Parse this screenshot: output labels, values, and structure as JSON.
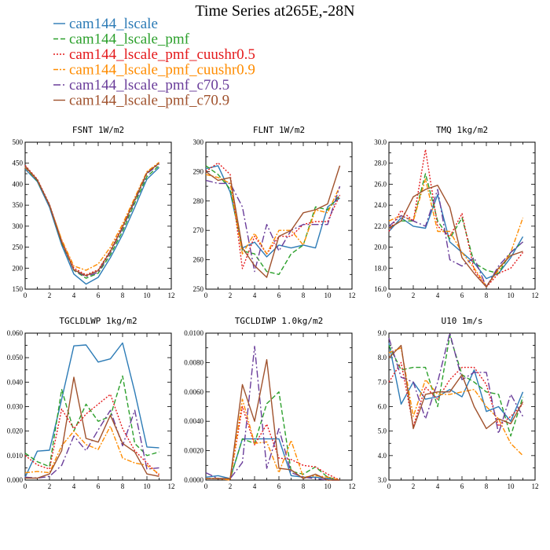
{
  "title": "Time Series at265E,-28N",
  "legend": [
    {
      "name": "cam144_lscale",
      "color": "#2c7bb6",
      "dash": "solid"
    },
    {
      "name": "cam144_lscale_pmf",
      "color": "#2ca02c",
      "dash": "dashed"
    },
    {
      "name": "cam144_lscale_pmf_cuushr0.5",
      "color": "#e41a1c",
      "dash": "dotted"
    },
    {
      "name": "cam144_lscale_pmf_cuushr0.9",
      "color": "#ff8c00",
      "dash": "dashdot"
    },
    {
      "name": "cam144_lscale_pmf_c70.5",
      "color": "#6a3d9a",
      "dash": "longdash"
    },
    {
      "name": "cam144_lscale_pmf_c70.9",
      "color": "#a0522d",
      "dash": "solid"
    }
  ],
  "chart_data": [
    {
      "type": "line",
      "title": "FSNT   1W/m2",
      "x": [
        0,
        1,
        2,
        3,
        4,
        5,
        6,
        7,
        8,
        9,
        10,
        11
      ],
      "xlim": [
        0,
        12
      ],
      "ylim": [
        150,
        500
      ],
      "xticks": [
        "0",
        "2",
        "4",
        "6",
        "8",
        "10",
        "12"
      ],
      "yticks": [
        "150",
        "200",
        "250",
        "300",
        "350",
        "400",
        "450",
        "500"
      ],
      "series": [
        {
          "name": "cam144_lscale",
          "values": [
            436,
            406,
            345,
            255,
            186,
            162,
            178,
            225,
            280,
            345,
            412,
            440
          ]
        },
        {
          "name": "cam144_lscale_pmf",
          "values": [
            440,
            408,
            350,
            260,
            195,
            176,
            188,
            232,
            288,
            355,
            418,
            444
          ]
        },
        {
          "name": "cam144_lscale_pmf_cuushr0.5",
          "values": [
            445,
            412,
            352,
            265,
            200,
            184,
            196,
            242,
            300,
            365,
            428,
            450
          ]
        },
        {
          "name": "cam144_lscale_pmf_cuushr0.9",
          "values": [
            440,
            410,
            350,
            268,
            205,
            195,
            210,
            250,
            305,
            368,
            430,
            452
          ]
        },
        {
          "name": "cam144_lscale_pmf_c70.5",
          "values": [
            442,
            410,
            350,
            262,
            195,
            180,
            190,
            238,
            295,
            360,
            425,
            448
          ]
        },
        {
          "name": "cam144_lscale_pmf_c70.9",
          "values": [
            443,
            410,
            350,
            262,
            196,
            182,
            194,
            240,
            298,
            363,
            427,
            450
          ]
        }
      ]
    },
    {
      "type": "line",
      "title": "FLNT   1W/m2",
      "x": [
        0,
        1,
        2,
        3,
        4,
        5,
        6,
        7,
        8,
        9,
        10,
        11
      ],
      "xlim": [
        0,
        12
      ],
      "ylim": [
        250,
        300
      ],
      "xticks": [
        "0",
        "2",
        "4",
        "6",
        "8",
        "10",
        "12"
      ],
      "yticks": [
        "250",
        "260",
        "270",
        "280",
        "290",
        "300"
      ],
      "series": [
        {
          "name": "cam144_lscale",
          "values": [
            291,
            292,
            283,
            264,
            266,
            261,
            265,
            264,
            265,
            264,
            278,
            281
          ]
        },
        {
          "name": "cam144_lscale_pmf",
          "values": [
            292,
            289,
            284,
            263,
            262,
            256,
            255,
            262,
            265,
            278,
            277,
            282
          ]
        },
        {
          "name": "cam144_lscale_pmf_cuushr0.5",
          "values": [
            290,
            293,
            289,
            257,
            268,
            262,
            268,
            268,
            272,
            273,
            273,
            282
          ]
        },
        {
          "name": "cam144_lscale_pmf_cuushr0.9",
          "values": [
            289,
            288,
            286,
            262,
            269,
            262,
            270,
            270,
            265,
            277,
            276,
            285
          ]
        },
        {
          "name": "cam144_lscale_pmf_c70.5",
          "values": [
            287,
            286,
            286,
            278,
            256,
            272,
            263,
            270,
            272,
            272,
            272,
            285
          ]
        },
        {
          "name": "cam144_lscale_pmf_c70.9",
          "values": [
            290,
            287,
            288,
            264,
            258,
            254,
            268,
            270,
            276,
            277,
            279,
            292
          ]
        }
      ]
    },
    {
      "type": "line",
      "title": "TMQ   1kg/m2",
      "x": [
        0,
        1,
        2,
        3,
        4,
        5,
        6,
        7,
        8,
        9,
        10,
        11
      ],
      "xlim": [
        0,
        12
      ],
      "ylim": [
        16.0,
        30.0
      ],
      "xticks": [
        "0",
        "2",
        "4",
        "6",
        "8",
        "10",
        "12"
      ],
      "yticks": [
        "16.0",
        "18.0",
        "20.0",
        "22.0",
        "24.0",
        "26.0",
        "28.0",
        "30.0"
      ],
      "series": [
        {
          "name": "cam144_lscale",
          "values": [
            21.5,
            22.8,
            22.0,
            21.8,
            25.0,
            20.5,
            19.5,
            18.5,
            17.0,
            17.5,
            19.0,
            21.0
          ]
        },
        {
          "name": "cam144_lscale_pmf",
          "values": [
            21.8,
            22.5,
            22.5,
            27.0,
            22.5,
            20.8,
            22.8,
            18.5,
            17.8,
            17.5,
            19.5,
            20.5
          ]
        },
        {
          "name": "cam144_lscale_pmf_cuushr0.5",
          "values": [
            21.5,
            23.5,
            22.5,
            29.3,
            22.0,
            21.0,
            23.2,
            17.8,
            16.2,
            17.5,
            18.0,
            19.5
          ]
        },
        {
          "name": "cam144_lscale_pmf_cuushr0.9",
          "values": [
            22.5,
            23.0,
            22.5,
            26.5,
            21.5,
            21.5,
            19.5,
            18.0,
            16.3,
            17.8,
            19.5,
            22.8
          ]
        },
        {
          "name": "cam144_lscale_pmf_c70.5",
          "values": [
            22.0,
            23.0,
            22.5,
            22.0,
            25.5,
            18.8,
            18.2,
            19.0,
            16.2,
            18.2,
            19.5,
            20.5
          ]
        },
        {
          "name": "cam144_lscale_pmf_c70.9",
          "values": [
            21.8,
            22.5,
            24.8,
            25.5,
            25.9,
            23.8,
            19.0,
            17.5,
            16.2,
            18.0,
            19.2,
            19.6
          ]
        }
      ]
    },
    {
      "type": "line",
      "title": "TGCLDLWP   1kg/m2",
      "x": [
        0,
        1,
        2,
        3,
        4,
        5,
        6,
        7,
        8,
        9,
        10,
        11
      ],
      "xlim": [
        0,
        12
      ],
      "ylim": [
        0.0,
        0.06
      ],
      "xticks": [
        "0",
        "2",
        "4",
        "6",
        "8",
        "10",
        "12"
      ],
      "yticks": [
        "0.000",
        "0.010",
        "0.020",
        "0.030",
        "0.040",
        "0.050",
        "0.060"
      ],
      "series": [
        {
          "name": "cam144_lscale",
          "values": [
            0.0012,
            0.0118,
            0.0122,
            0.033,
            0.0548,
            0.0552,
            0.0482,
            0.0495,
            0.056,
            0.036,
            0.0135,
            0.0132
          ]
        },
        {
          "name": "cam144_lscale_pmf",
          "values": [
            0.011,
            0.0075,
            0.0055,
            0.037,
            0.02,
            0.031,
            0.024,
            0.026,
            0.0425,
            0.015,
            0.01,
            0.0115
          ]
        },
        {
          "name": "cam144_lscale_pmf_cuushr0.5",
          "values": [
            0.01,
            0.0062,
            0.0045,
            0.029,
            0.021,
            0.027,
            0.031,
            0.035,
            0.021,
            0.012,
            0.007,
            0.002
          ]
        },
        {
          "name": "cam144_lscale_pmf_cuushr0.9",
          "values": [
            0.003,
            0.0035,
            0.003,
            0.014,
            0.02,
            0.0145,
            0.0125,
            0.022,
            0.009,
            0.007,
            0.006,
            0.0025
          ]
        },
        {
          "name": "cam144_lscale_pmf_c70.5",
          "values": [
            0.0012,
            0.0008,
            0.0015,
            0.006,
            0.018,
            0.012,
            0.0205,
            0.0285,
            0.014,
            0.0285,
            0.0045,
            0.005
          ]
        },
        {
          "name": "cam144_lscale_pmf_c70.9",
          "values": [
            0.0008,
            0.0008,
            0.0025,
            0.012,
            0.042,
            0.017,
            0.0155,
            0.0265,
            0.015,
            0.0115,
            0.0025,
            0.0015
          ]
        }
      ]
    },
    {
      "type": "line",
      "title": "TGCLDIWP   1.0kg/m2",
      "x": [
        0,
        1,
        2,
        3,
        4,
        5,
        6,
        7,
        8,
        9,
        10,
        11
      ],
      "xlim": [
        0,
        12
      ],
      "ylim": [
        0.0,
        0.01
      ],
      "xticks": [
        "0",
        "2",
        "4",
        "6",
        "8",
        "10",
        "12"
      ],
      "yticks": [
        "0.0000",
        "0.0020",
        "0.0040",
        "0.0060",
        "0.0080",
        "0.0100"
      ],
      "series": [
        {
          "name": "cam144_lscale",
          "values": [
            0.0002,
            0.0003,
            0.0001,
            0.0028,
            0.0028,
            0.0028,
            0.0028,
            0.0003,
            0.0002,
            0.0002,
            0.0001,
            0.0
          ]
        },
        {
          "name": "cam144_lscale_pmf",
          "values": [
            0.0001,
            0.0001,
            0.0001,
            0.0028,
            0.0025,
            0.0052,
            0.006,
            0.0006,
            0.0004,
            0.0009,
            0.0002,
            0.0
          ]
        },
        {
          "name": "cam144_lscale_pmf_cuushr0.5",
          "values": [
            0.0001,
            0.0001,
            0.0,
            0.005,
            0.0024,
            0.0038,
            0.0015,
            0.0014,
            0.001,
            0.0009,
            0.0004,
            0.0
          ]
        },
        {
          "name": "cam144_lscale_pmf_cuushr0.9",
          "values": [
            0.0001,
            0.0001,
            0.0,
            0.0055,
            0.0025,
            0.0026,
            0.0005,
            0.0027,
            0.0002,
            0.0003,
            0.0002,
            0.0
          ]
        },
        {
          "name": "cam144_lscale_pmf_c70.5",
          "values": [
            0.0005,
            0.0001,
            0.0001,
            0.0012,
            0.0091,
            0.0008,
            0.0035,
            0.0005,
            0.0002,
            0.0001,
            0.0,
            0.0
          ]
        },
        {
          "name": "cam144_lscale_pmf_c70.9",
          "values": [
            0.0001,
            0.0001,
            0.0001,
            0.0065,
            0.004,
            0.0082,
            0.0008,
            0.0007,
            0.0001,
            0.0004,
            0.0,
            0.0
          ]
        }
      ]
    },
    {
      "type": "line",
      "title": "U10   1m/s",
      "x": [
        0,
        1,
        2,
        3,
        4,
        5,
        6,
        7,
        8,
        9,
        10,
        11
      ],
      "xlim": [
        0,
        12
      ],
      "ylim": [
        3.0,
        9.0
      ],
      "xticks": [
        "0",
        "2",
        "4",
        "6",
        "8",
        "10",
        "12"
      ],
      "yticks": [
        "3.0",
        "4.0",
        "5.0",
        "6.0",
        "7.0",
        "8.0",
        "9.0"
      ],
      "series": [
        {
          "name": "cam144_lscale",
          "values": [
            8.6,
            6.1,
            7.0,
            6.3,
            6.4,
            6.7,
            6.4,
            7.5,
            5.8,
            6.0,
            5.4,
            6.6
          ]
        },
        {
          "name": "cam144_lscale_pmf",
          "values": [
            8.5,
            7.5,
            7.6,
            7.6,
            6.0,
            8.9,
            7.3,
            7.0,
            6.6,
            6.5,
            4.8,
            6.4
          ]
        },
        {
          "name": "cam144_lscale_pmf_cuushr0.5",
          "values": [
            7.0,
            7.8,
            5.2,
            6.8,
            6.3,
            7.1,
            7.6,
            7.6,
            6.9,
            5.2,
            5.6,
            6.1
          ]
        },
        {
          "name": "cam144_lscale_pmf_cuushr0.9",
          "values": [
            8.2,
            8.4,
            5.6,
            7.1,
            6.5,
            6.5,
            6.6,
            6.7,
            6.0,
            5.5,
            4.5,
            4.0
          ]
        },
        {
          "name": "cam144_lscale_pmf_c70.5",
          "values": [
            8.8,
            7.2,
            7.0,
            5.5,
            7.0,
            9.0,
            7.1,
            7.4,
            7.4,
            4.9,
            6.5,
            5.6
          ]
        },
        {
          "name": "cam144_lscale_pmf_c70.9",
          "values": [
            8.0,
            8.5,
            5.1,
            6.5,
            6.6,
            6.6,
            7.3,
            6.0,
            5.1,
            5.5,
            5.3,
            6.2
          ]
        }
      ]
    }
  ]
}
